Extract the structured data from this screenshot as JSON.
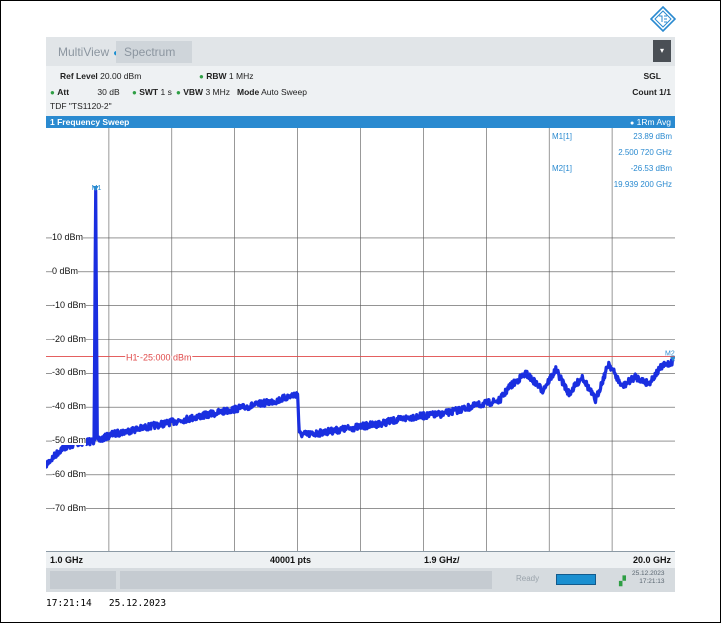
{
  "app": {
    "tabs": [
      {
        "label": "MultiView"
      },
      {
        "label": "Spectrum"
      }
    ],
    "brand_color": "#2a8ad0"
  },
  "header": {
    "ref_level_label": "Ref Level",
    "ref_level_value": "20.00 dBm",
    "rbw_label": "RBW",
    "rbw_value": "1 MHz",
    "att_label": "Att",
    "att_value": "30 dB",
    "swt_label": "SWT",
    "swt_value": "1 s",
    "vbw_label": "VBW",
    "vbw_value": "3 MHz",
    "mode_label": "Mode",
    "mode_value": "Auto Sweep",
    "tdf": "TDF \"TS1120-2\"",
    "sgl": "SGL",
    "count": "Count 1/1"
  },
  "window": {
    "title": "1 Frequency Sweep",
    "trace_label": "1Rm Avg"
  },
  "markers": {
    "m1": {
      "label": "M1[1]",
      "level": "23.89 dBm",
      "freq": "2.500 720 GHz",
      "tag": "M1",
      "x_ghz": 2.5007,
      "y_dbm": 23.89
    },
    "m2": {
      "label": "M2[1]",
      "level": "-26.53 dBm",
      "freq": "19.939 200 GHz",
      "tag": "M2",
      "x_ghz": 19.9392,
      "y_dbm": -26.53
    }
  },
  "limit_line": {
    "label": "H1 -25.000 dBm",
    "value": -25.0,
    "color": "#e04a4a"
  },
  "chart_data": {
    "type": "line",
    "xlim_ghz": [
      1.0,
      20.0
    ],
    "ylim_dbm": [
      -80,
      20
    ],
    "y_tick_labels": [
      "10 dBm",
      "0 dBm",
      "-10 dBm",
      "-20 dBm",
      "-30 dBm",
      "-40 dBm",
      "-50 dBm",
      "-60 dBm",
      "-70 dBm"
    ],
    "y_ticks": [
      10,
      0,
      -10,
      -20,
      -30,
      -40,
      -50,
      -60,
      -70
    ],
    "x_gridlines": 10,
    "trace_color": "#1a2fe0",
    "series": [
      {
        "x": [
          1.0,
          1.5,
          2.0,
          2.45,
          2.5,
          2.55,
          3.0,
          4.0,
          5.0,
          6.0,
          7.0,
          8.0,
          8.6,
          8.65,
          9.0,
          10.0,
          11.0,
          12.0,
          13.0,
          14.0,
          14.7,
          15.0,
          15.5,
          16.0,
          16.4,
          16.8,
          17.2,
          17.6,
          18.0,
          18.4,
          18.8,
          19.2,
          19.6,
          19.94
        ],
        "y": [
          -57,
          -52,
          -50.5,
          -50,
          24,
          -50,
          -48,
          -46,
          -44,
          -42,
          -40,
          -38,
          -36,
          -48,
          -48,
          -46.5,
          -45,
          -43,
          -42,
          -39.5,
          -38,
          -34,
          -30,
          -35,
          -29,
          -36,
          -31,
          -38,
          -27,
          -34,
          -31,
          -33,
          -28,
          -26.5
        ]
      }
    ],
    "x_labels": {
      "start": "1.0 GHz",
      "points": "40001 pts",
      "mid": "1.9 GHz/",
      "stop": "20.0 GHz"
    }
  },
  "status": {
    "ready": "Ready",
    "date": "25.12.2023",
    "time": "17:21:13"
  },
  "footer": {
    "timestamp": "17:21:14   25.12.2023"
  }
}
